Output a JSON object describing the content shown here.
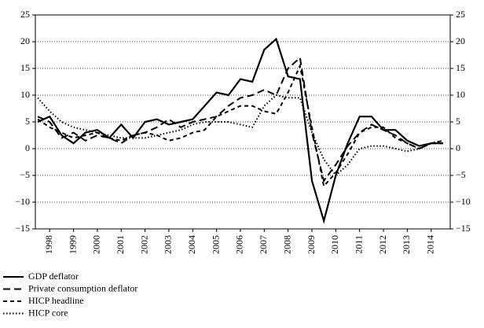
{
  "chart_data": {
    "type": "line",
    "x": [
      1997.5,
      1998,
      1998.5,
      1999,
      1999.5,
      2000,
      2000.5,
      2001,
      2001.5,
      2002,
      2002.5,
      2003,
      2003.5,
      2004,
      2004.5,
      2005,
      2005.5,
      2006,
      2006.5,
      2007,
      2007.5,
      2008,
      2008.5,
      2009,
      2009.5,
      2010,
      2010.5,
      2011,
      2011.5,
      2012,
      2012.5,
      2013,
      2013.5,
      2014,
      2014.5
    ],
    "series": [
      {
        "name": "GDP deflator",
        "color": "#000000",
        "style": "solid",
        "values": [
          5,
          6,
          2.5,
          1,
          3,
          3.5,
          2,
          4.5,
          2,
          5,
          5.5,
          4.5,
          5,
          5.5,
          8,
          10.5,
          10,
          13,
          12.5,
          18.5,
          20.5,
          13.5,
          13,
          -6,
          -13.5,
          -5,
          1,
          6,
          6,
          3.5,
          3.5,
          1.5,
          0.5,
          1,
          1
        ]
      },
      {
        "name": "Private consumption deflator",
        "color": "#000000",
        "style": "long-dash",
        "values": [
          6,
          5,
          2,
          3,
          1.5,
          2.5,
          2,
          1,
          2.5,
          3,
          4,
          5.5,
          4,
          5,
          5.5,
          6,
          8,
          9.5,
          10,
          11,
          10,
          15,
          17,
          3,
          -6,
          -3,
          0.5,
          3,
          4.5,
          3.5,
          2.5,
          1,
          0,
          1,
          1
        ]
      },
      {
        "name": "HICP headline",
        "color": "#000000",
        "style": "dash",
        "values": [
          5.5,
          4,
          3,
          2,
          2.5,
          3,
          2,
          1.5,
          2.5,
          3,
          2.5,
          1.5,
          2,
          3,
          3.5,
          6,
          7,
          8,
          8,
          7,
          6.5,
          10.5,
          15.5,
          4,
          -7,
          -4.5,
          -1,
          3,
          4,
          4,
          2,
          1,
          0,
          1,
          1.5
        ]
      },
      {
        "name": "HICP core",
        "color": "#000000",
        "style": "dot",
        "values": [
          9.5,
          7,
          5,
          4,
          3.5,
          3,
          2.5,
          2,
          2,
          2,
          2.5,
          3,
          3.5,
          4.5,
          5,
          5,
          5,
          4.5,
          4,
          8,
          10,
          9.5,
          9.5,
          3,
          -2,
          -5,
          -3,
          0,
          0.5,
          0.5,
          0,
          -0.5,
          0,
          1,
          1.5
        ]
      }
    ],
    "xlim": [
      1997.4,
      2014.8
    ],
    "xticks": [
      1998,
      1999,
      2000,
      2001,
      2002,
      2003,
      2004,
      2005,
      2006,
      2007,
      2008,
      2009,
      2010,
      2011,
      2012,
      2013,
      2014
    ],
    "ylim": [
      -15,
      25
    ],
    "yticks": [
      {
        "value": -15,
        "label": "−15"
      },
      {
        "value": -10,
        "label": "−10"
      },
      {
        "value": -5,
        "label": "−5"
      },
      0,
      5,
      10,
      15,
      20,
      25
    ],
    "grid": true
  }
}
